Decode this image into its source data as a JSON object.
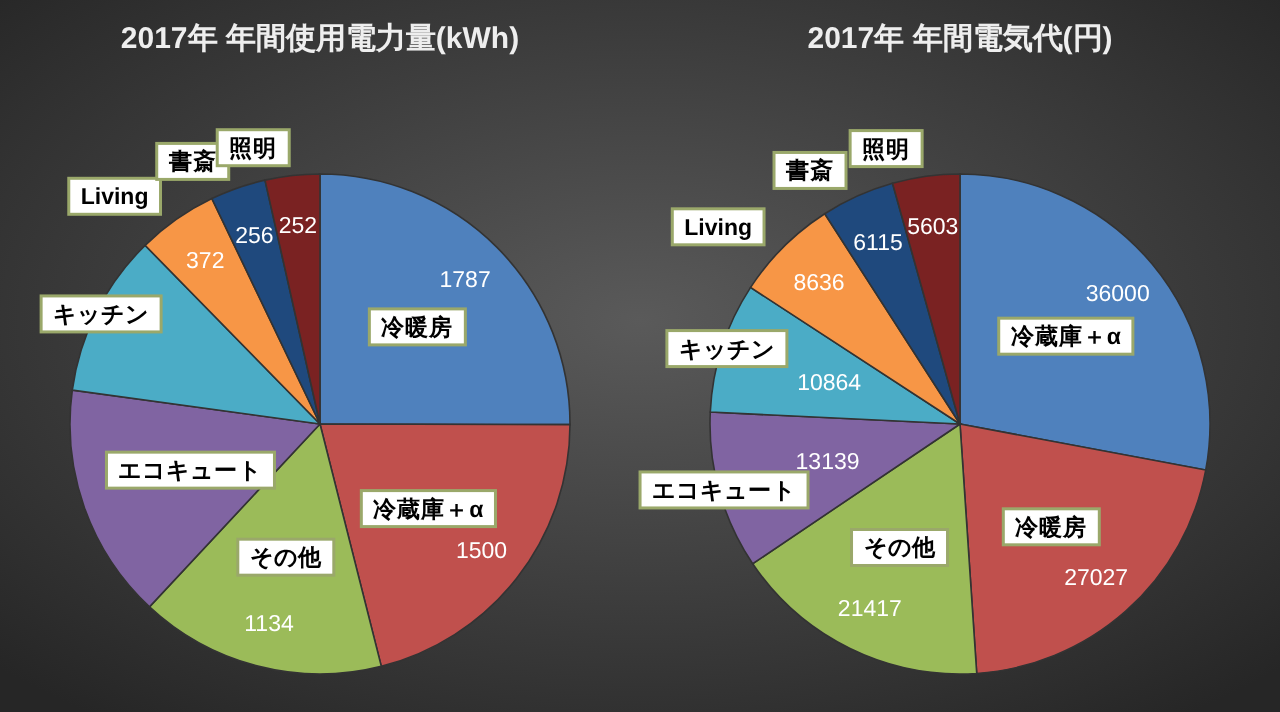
{
  "chart_data": [
    {
      "type": "pie",
      "title": "2017年 年間使用電力量(kWh)",
      "categories": [
        "冷暖房",
        "冷蔵庫＋α",
        "その他",
        "エコキュート",
        "キッチン",
        "Living",
        "書斎",
        "照明"
      ],
      "values": [
        1787,
        1500,
        1134,
        1086,
        750,
        372,
        256,
        252
      ],
      "value_labels": [
        "1787",
        "1500",
        "1134",
        null,
        null,
        "372",
        "256",
        "252"
      ],
      "colors": [
        "#4f81bd",
        "#c0504d",
        "#9bbb59",
        "#8064a2",
        "#4bacc6",
        "#f79646",
        "#1f497d",
        "#7a2222"
      ]
    },
    {
      "type": "pie",
      "title": "2017年 年間電気代(円)",
      "categories": [
        "冷蔵庫＋α",
        "冷暖房",
        "その他",
        "エコキュート",
        "キッチン",
        "Living",
        "書斎",
        "照明"
      ],
      "values": [
        36000,
        27027,
        21417,
        13139,
        10864,
        8636,
        6115,
        5603
      ],
      "value_labels": [
        "36000",
        "27027",
        "21417",
        "13139",
        "10864",
        "8636",
        "6115",
        "5603"
      ],
      "colors": [
        "#4f81bd",
        "#c0504d",
        "#9bbb59",
        "#8064a2",
        "#4bacc6",
        "#f79646",
        "#1f497d",
        "#7a2222"
      ]
    }
  ]
}
